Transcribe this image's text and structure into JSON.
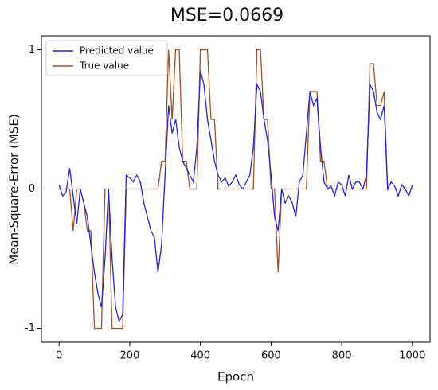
{
  "chart_data": {
    "type": "line",
    "title": "MSE=0.0669",
    "x_label": "Epoch",
    "y_label": "Mean-Square-Error (MSE)",
    "x": [
      0,
      10,
      20,
      30,
      40,
      50,
      60,
      70,
      80,
      90,
      100,
      110,
      120,
      130,
      140,
      150,
      160,
      170,
      180,
      190,
      200,
      210,
      220,
      230,
      240,
      250,
      260,
      270,
      280,
      290,
      300,
      310,
      320,
      330,
      340,
      350,
      360,
      370,
      380,
      390,
      400,
      410,
      420,
      430,
      440,
      450,
      460,
      470,
      480,
      490,
      500,
      510,
      520,
      530,
      540,
      550,
      560,
      570,
      580,
      590,
      600,
      610,
      620,
      630,
      640,
      650,
      660,
      670,
      680,
      690,
      700,
      710,
      720,
      730,
      740,
      750,
      760,
      770,
      780,
      790,
      800,
      810,
      820,
      830,
      840,
      850,
      860,
      870,
      880,
      890,
      900,
      910,
      920,
      930,
      940,
      950,
      960,
      970,
      980,
      990,
      1000
    ],
    "series": [
      {
        "name": "Predicted value",
        "color": "#2626c8",
        "values": [
          0.03,
          -0.05,
          -0.02,
          0.15,
          -0.05,
          -0.25,
          0.0,
          -0.1,
          -0.2,
          -0.4,
          -0.6,
          -0.75,
          -0.85,
          -0.5,
          0.0,
          -0.5,
          -0.85,
          -0.95,
          -0.9,
          0.1,
          0.08,
          0.05,
          0.1,
          0.05,
          -0.1,
          -0.2,
          -0.3,
          -0.35,
          -0.6,
          -0.4,
          0.1,
          0.6,
          0.4,
          0.5,
          0.3,
          0.2,
          0.15,
          0.1,
          0.05,
          0.3,
          0.85,
          0.75,
          0.5,
          0.35,
          0.2,
          0.1,
          0.05,
          0.08,
          0.02,
          0.05,
          0.1,
          0.03,
          0.0,
          0.05,
          0.1,
          0.3,
          0.75,
          0.7,
          0.5,
          0.35,
          0.1,
          -0.2,
          -0.3,
          0.0,
          -0.1,
          -0.05,
          -0.1,
          -0.2,
          0.05,
          0.1,
          0.4,
          0.7,
          0.6,
          0.65,
          0.3,
          0.05,
          0.0,
          0.02,
          -0.05,
          0.05,
          0.03,
          -0.05,
          0.1,
          0.0,
          0.05,
          0.05,
          0.0,
          0.1,
          0.75,
          0.7,
          0.55,
          0.5,
          0.6,
          0.0,
          0.05,
          0.02,
          -0.05,
          0.03,
          0.0,
          -0.05,
          0.03
        ]
      },
      {
        "name": "True value",
        "color": "#a0522d",
        "values": [
          0,
          0,
          0,
          0,
          -0.3,
          0,
          0,
          -0.1,
          -0.3,
          -0.3,
          -1,
          -1,
          -1,
          0,
          0,
          -1,
          -1,
          -1,
          -1,
          0,
          0,
          0,
          0,
          0,
          0,
          0,
          0,
          0,
          0,
          0.2,
          0.2,
          1,
          0.5,
          1,
          1,
          0.2,
          0.2,
          0,
          0,
          0,
          1,
          1,
          1,
          0.5,
          0.5,
          0,
          0,
          0,
          0,
          0,
          0,
          0,
          0,
          0,
          0,
          0,
          1,
          1,
          0.5,
          0.5,
          0,
          0,
          -0.6,
          0,
          0,
          0,
          0,
          0,
          0,
          0,
          0,
          0.7,
          0.7,
          0.7,
          0.2,
          0.2,
          0,
          0,
          0,
          0,
          0,
          0,
          0,
          0,
          0,
          0,
          0,
          0,
          0.9,
          0.9,
          0.6,
          0.6,
          0.7,
          0,
          0,
          0,
          0,
          0,
          0,
          0,
          0
        ]
      }
    ],
    "xlim": [
      -50,
      1050
    ],
    "ylim": [
      -1.1,
      1.1
    ],
    "xticks": [
      0,
      200,
      400,
      600,
      800,
      1000
    ],
    "yticks": [
      -1,
      0,
      1
    ],
    "legend": "upper left"
  }
}
